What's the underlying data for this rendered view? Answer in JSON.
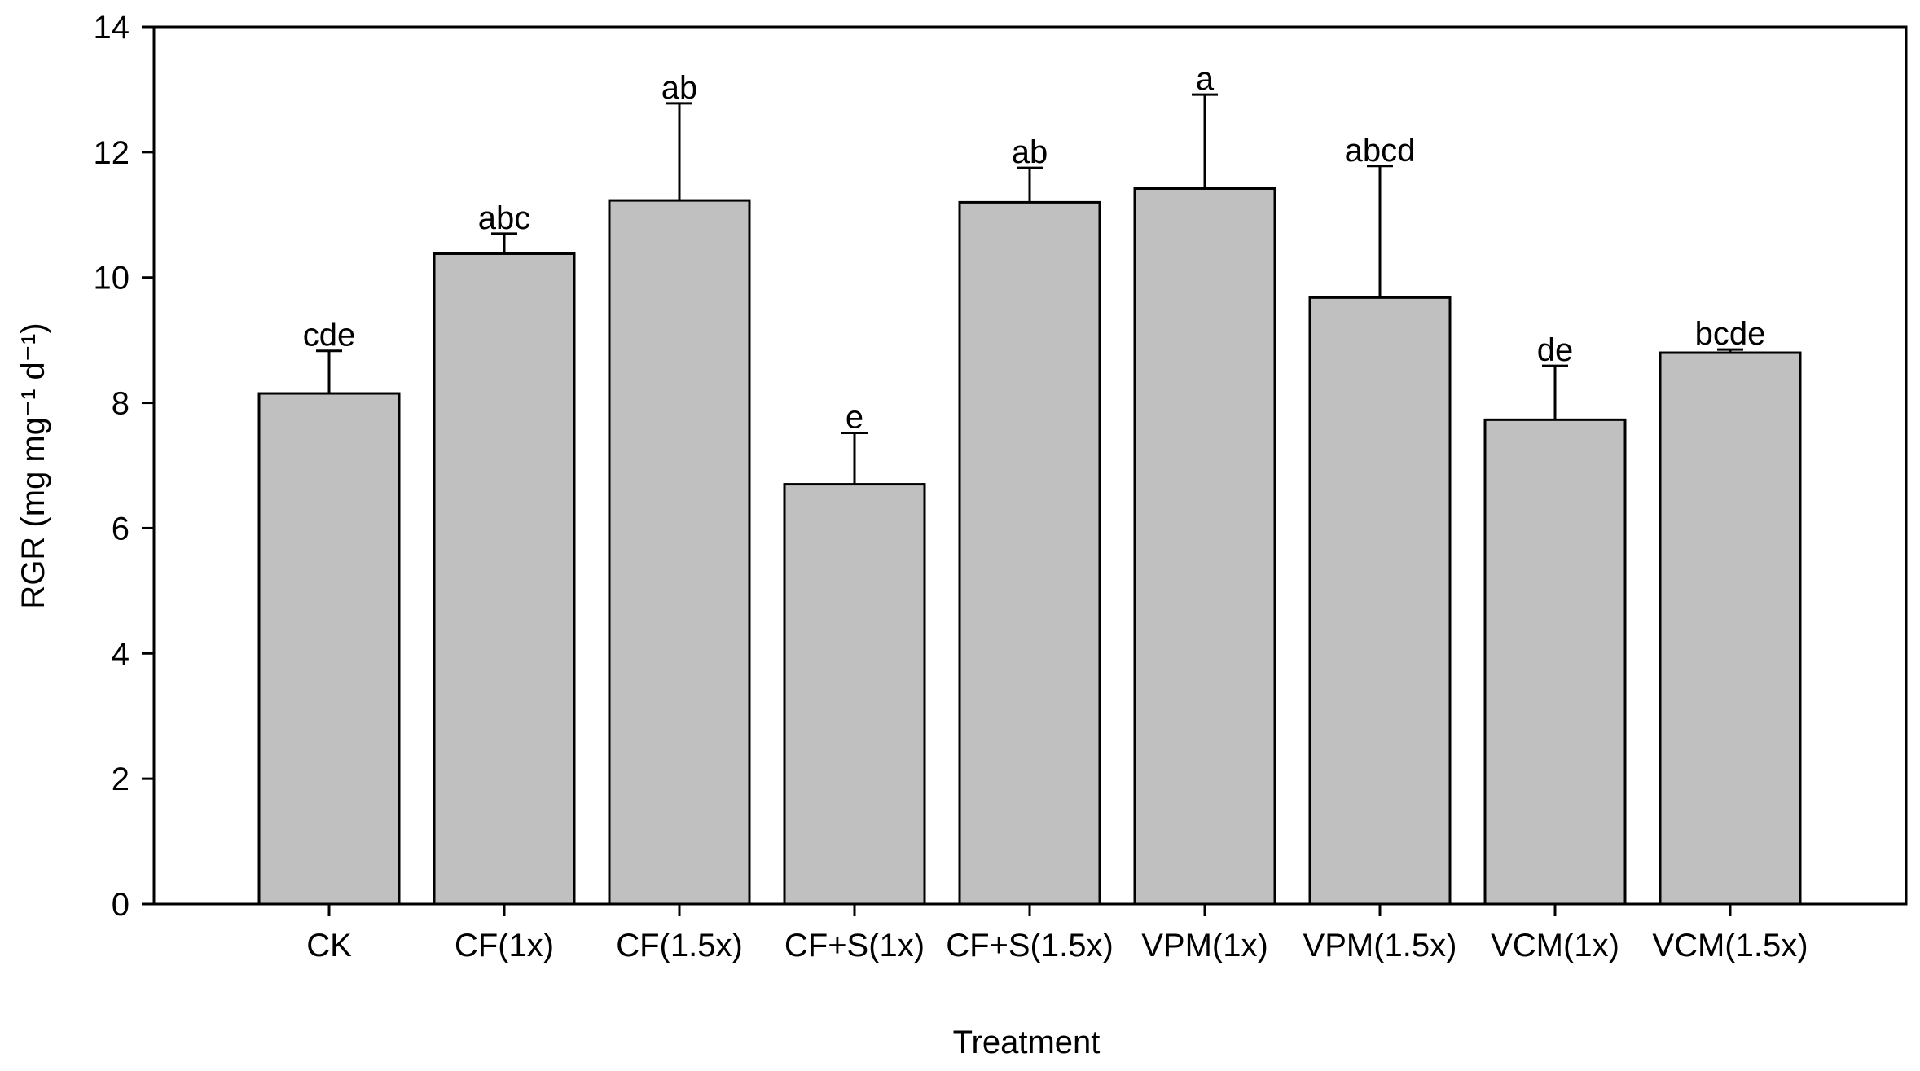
{
  "chart_data": {
    "type": "bar",
    "categories": [
      "CK",
      "CF(1x)",
      "CF(1.5x)",
      "CF+S(1x)",
      "CF+S(1.5x)",
      "VPM(1x)",
      "VPM(1.5x)",
      "VCM(1x)",
      "VCM(1.5x)"
    ],
    "values": [
      8.15,
      10.38,
      11.23,
      6.7,
      11.2,
      11.42,
      9.68,
      7.73,
      8.8
    ],
    "errors": [
      0.68,
      0.32,
      1.55,
      0.82,
      0.55,
      1.5,
      2.1,
      0.86,
      0.05
    ],
    "significance": [
      "cde",
      "abc",
      "ab",
      "e",
      "ab",
      "a",
      "abcd",
      "de",
      "bcde"
    ],
    "xlabel": "Treatment",
    "ylabel": "RGR (mg mg⁻¹ d⁻¹)",
    "ylim": [
      0,
      14
    ],
    "yticks": [
      "0",
      "2",
      "4",
      "6",
      "8",
      "10",
      "12",
      "14"
    ],
    "bar_color": "#c0c0c0",
    "edge_color": "#000000",
    "grid": false,
    "legend": false
  }
}
